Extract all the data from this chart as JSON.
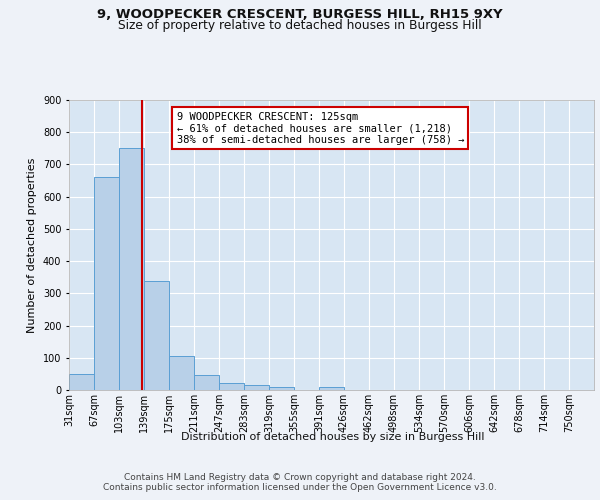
{
  "title_line1": "9, WOODPECKER CRESCENT, BURGESS HILL, RH15 9XY",
  "title_line2": "Size of property relative to detached houses in Burgess Hill",
  "xlabel": "Distribution of detached houses by size in Burgess Hill",
  "ylabel": "Number of detached properties",
  "bar_categories": [
    "31sqm",
    "67sqm",
    "103sqm",
    "139sqm",
    "175sqm",
    "211sqm",
    "247sqm",
    "283sqm",
    "319sqm",
    "355sqm",
    "391sqm",
    "426sqm",
    "462sqm",
    "498sqm",
    "534sqm",
    "570sqm",
    "606sqm",
    "642sqm",
    "678sqm",
    "714sqm",
    "750sqm"
  ],
  "bar_values": [
    50,
    660,
    750,
    338,
    107,
    48,
    23,
    14,
    10,
    0,
    8,
    0,
    0,
    0,
    0,
    0,
    0,
    0,
    0,
    0,
    0
  ],
  "bar_color": "#b8d0e8",
  "bar_edge_color": "#5a9fd4",
  "property_line_x": 2.92,
  "annotation_text": "9 WOODPECKER CRESCENT: 125sqm\n← 61% of detached houses are smaller (1,218)\n38% of semi-detached houses are larger (758) →",
  "annotation_box_color": "#ffffff",
  "annotation_box_edge": "#cc0000",
  "ylim": [
    0,
    900
  ],
  "yticks": [
    0,
    100,
    200,
    300,
    400,
    500,
    600,
    700,
    800,
    900
  ],
  "footer_line1": "Contains HM Land Registry data © Crown copyright and database right 2024.",
  "footer_line2": "Contains public sector information licensed under the Open Government Licence v3.0.",
  "background_color": "#eef2f8",
  "plot_bg_color": "#d8e6f3",
  "grid_color": "#ffffff",
  "title_fontsize": 9.5,
  "subtitle_fontsize": 8.8,
  "axis_label_fontsize": 8,
  "tick_fontsize": 7,
  "annotation_fontsize": 7.5,
  "footer_fontsize": 6.5
}
